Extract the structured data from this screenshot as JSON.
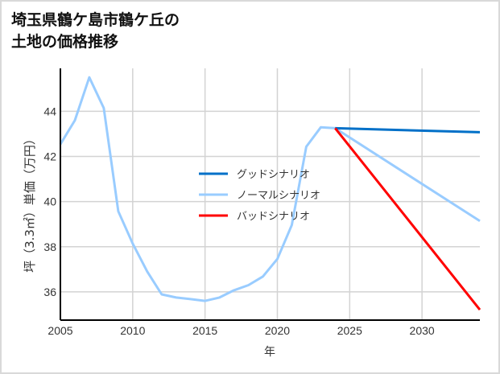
{
  "title_line1": "埼玉県鶴ケ島市鶴ケ丘の",
  "title_line2": "土地の価格推移",
  "chart_data": {
    "type": "line",
    "title": "埼玉県鶴ケ島市鶴ケ丘の土地の価格推移",
    "xlabel": "年",
    "ylabel": "坪（3.3㎡）単価（万円）",
    "xlim": [
      2005,
      2034
    ],
    "ylim": [
      34.75,
      45.9
    ],
    "xticks": [
      2005,
      2010,
      2015,
      2020,
      2025,
      2030
    ],
    "yticks": [
      36,
      38,
      40,
      42,
      44
    ],
    "grid": true,
    "legend_position": "center",
    "series": [
      {
        "name": "グッドシナリオ",
        "color": "#0070c8",
        "x": [
          2024,
          2034
        ],
        "y": [
          43.25,
          43.07
        ]
      },
      {
        "name": "ノーマルシナリオ",
        "color": "#99ccff",
        "x": [
          2005,
          2006,
          2007,
          2008,
          2009,
          2010,
          2011,
          2012,
          2013,
          2014,
          2015,
          2016,
          2017,
          2018,
          2019,
          2020,
          2021,
          2022,
          2023,
          2024,
          2034
        ],
        "y": [
          42.54,
          43.6,
          45.5,
          44.14,
          39.57,
          38.14,
          36.9,
          35.89,
          35.75,
          35.68,
          35.6,
          35.75,
          36.07,
          36.3,
          36.68,
          37.46,
          38.96,
          42.43,
          43.29,
          43.25,
          39.14
        ]
      },
      {
        "name": "バッドシナリオ",
        "color": "#ff0000",
        "x": [
          2024,
          2034
        ],
        "y": [
          43.25,
          35.21
        ]
      }
    ]
  }
}
